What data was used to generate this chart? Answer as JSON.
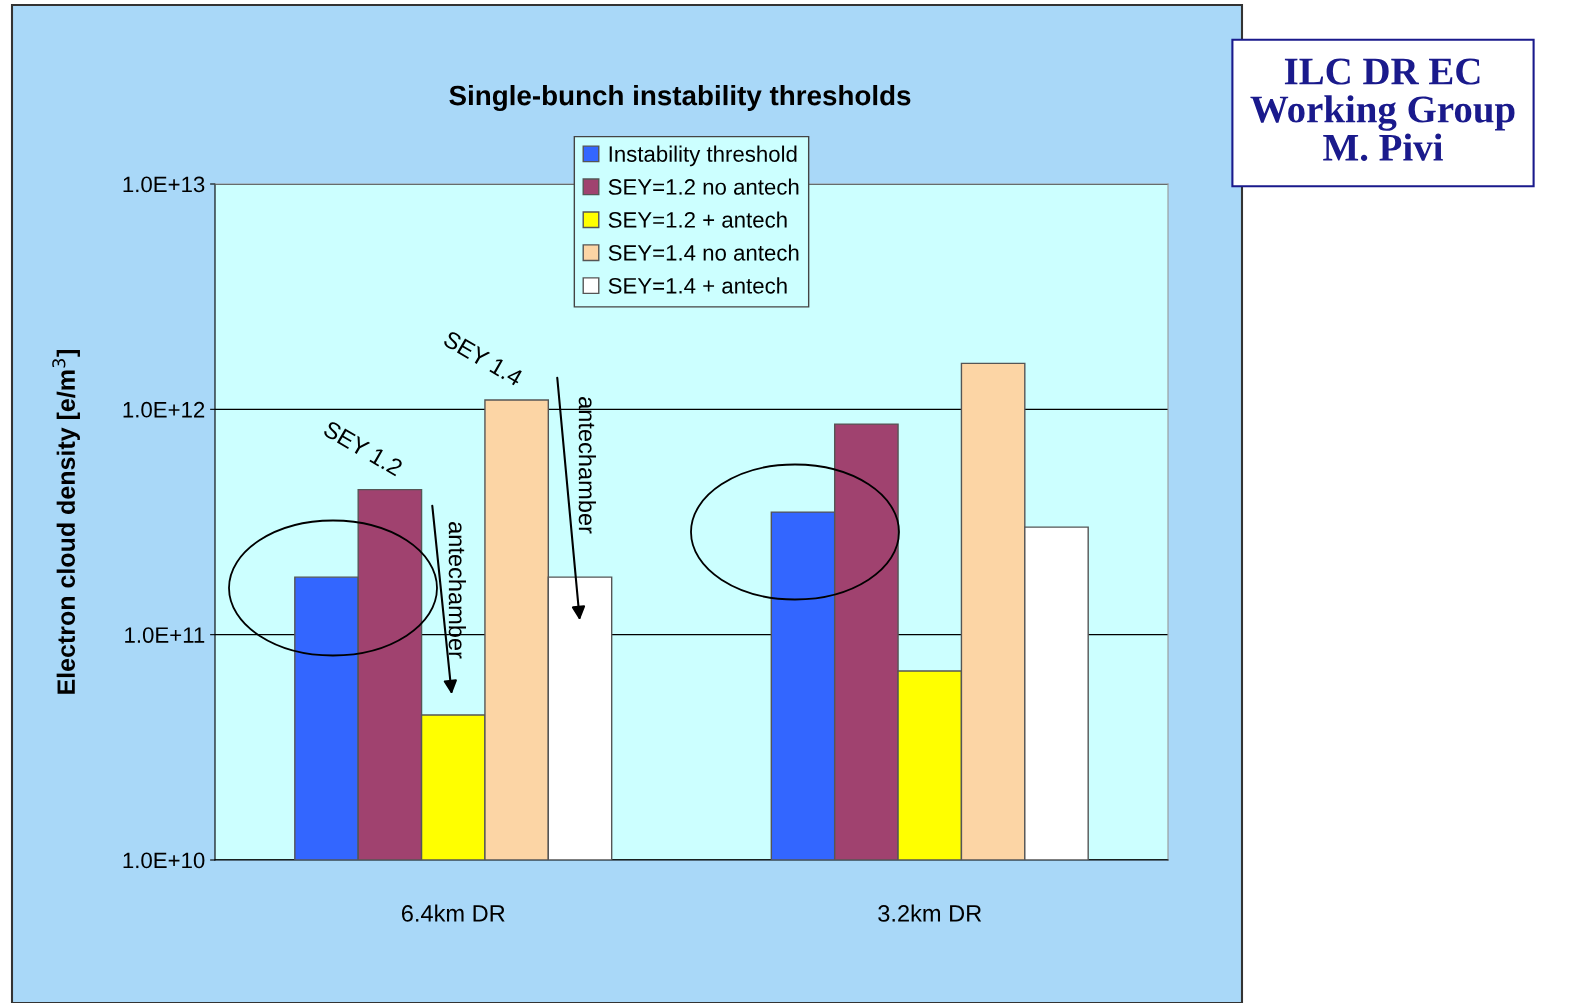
{
  "chart_data": {
    "type": "bar",
    "title": "Single-bunch instability thresholds",
    "ylabel": "Electron cloud density [e/m$^{3}$]",
    "categories": [
      "6.4km DR",
      "3.2km DR"
    ],
    "series": [
      {
        "name": "Instability threshold",
        "color": "#3366ff",
        "values": [
          180000000000.0,
          350000000000.0
        ]
      },
      {
        "name": "SEY=1.2 no antech",
        "color": "#a0426f",
        "values": [
          440000000000.0,
          860000000000.0
        ]
      },
      {
        "name": "SEY=1.2 + antech",
        "color": "#ffff00",
        "values": [
          44000000000.0,
          69000000000.0
        ]
      },
      {
        "name": "SEY=1.4 no antech",
        "color": "#fcd5a5",
        "values": [
          1100000000000.0,
          1600000000000.0
        ]
      },
      {
        "name": "SEY=1.4 + antech",
        "color": "#ffffff",
        "values": [
          180000000000.0,
          300000000000.0
        ]
      }
    ],
    "log": "y",
    "ylim": [
      10000000000.0,
      10000000000000.0
    ],
    "yticks": [
      {
        "value": 10000000000.0,
        "label": "1.0E+10"
      },
      {
        "value": 100000000000.0,
        "label": "1.0E+11"
      },
      {
        "value": 1000000000000.0,
        "label": "1.0E+12"
      },
      {
        "value": 10000000000000.0,
        "label": "1.0E+13"
      }
    ],
    "grid": "y",
    "legend": "top",
    "annotations": [
      "SEY 1.2",
      "SEY 1.4",
      "antechamber",
      "antechamber",
      "ILC DR EC\nWorking Group\nM. Pivi"
    ]
  }
}
